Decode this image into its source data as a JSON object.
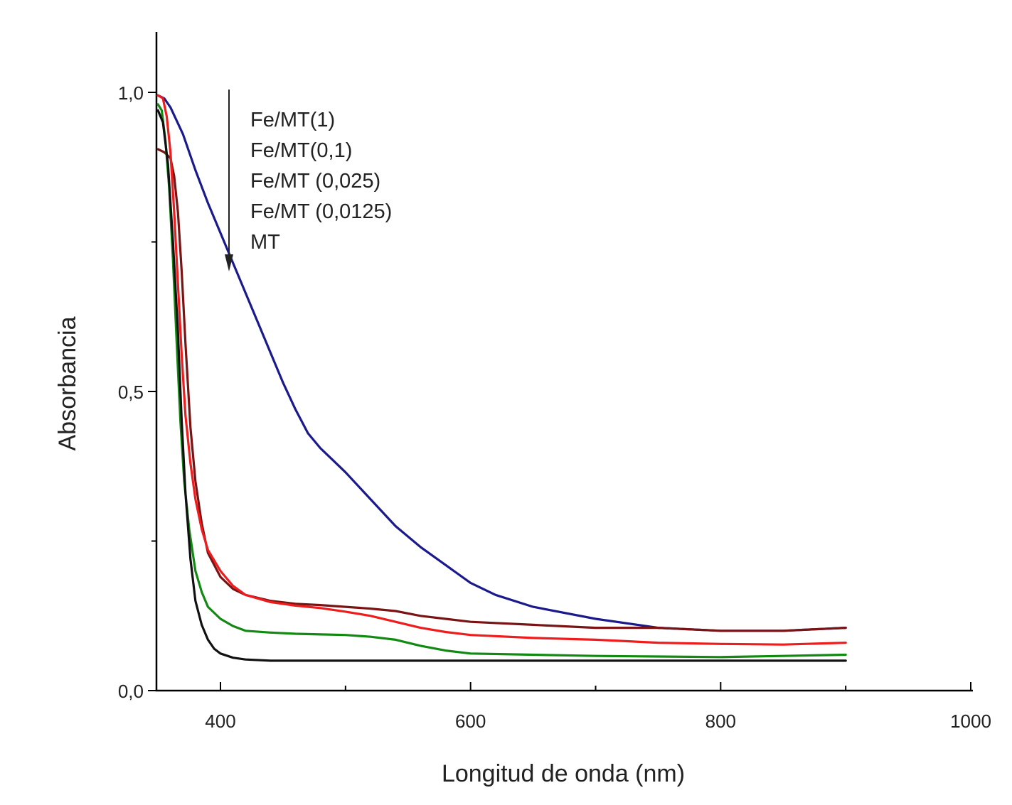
{
  "chart_data": {
    "type": "line",
    "xlabel": "Longitud de onda (nm)",
    "ylabel": "Absorbancia",
    "xlim": [
      350,
      1000
    ],
    "ylim": [
      0.0,
      1.1
    ],
    "x_ticks": [
      400,
      600,
      800,
      1000
    ],
    "x_tick_labels": [
      "400",
      "600",
      "800",
      "1000"
    ],
    "y_ticks": [
      0.0,
      0.5,
      1.0
    ],
    "y_tick_labels": [
      "0,0",
      "0,5",
      "1,0"
    ],
    "legend": {
      "placement": "top-left",
      "entries": [
        "Fe/MT(1)",
        "Fe/MT(0,1)",
        "Fe/MT (0,025)",
        "Fe/MT (0,0125)",
        "MT"
      ],
      "arrow": "down"
    },
    "grid": false,
    "series": [
      {
        "name": "Fe/MT(1)",
        "color": "#1a1a8c",
        "points": [
          [
            350,
            0.995
          ],
          [
            355,
            0.99
          ],
          [
            360,
            0.975
          ],
          [
            370,
            0.93
          ],
          [
            380,
            0.87
          ],
          [
            390,
            0.815
          ],
          [
            400,
            0.765
          ],
          [
            410,
            0.715
          ],
          [
            420,
            0.665
          ],
          [
            430,
            0.615
          ],
          [
            440,
            0.565
          ],
          [
            450,
            0.515
          ],
          [
            460,
            0.47
          ],
          [
            470,
            0.43
          ],
          [
            480,
            0.405
          ],
          [
            490,
            0.385
          ],
          [
            500,
            0.365
          ],
          [
            520,
            0.32
          ],
          [
            540,
            0.275
          ],
          [
            560,
            0.24
          ],
          [
            580,
            0.21
          ],
          [
            600,
            0.18
          ],
          [
            620,
            0.16
          ],
          [
            650,
            0.14
          ],
          [
            700,
            0.12
          ],
          [
            750,
            0.105
          ],
          [
            800,
            0.1
          ],
          [
            850,
            0.1
          ],
          [
            900,
            0.105
          ]
        ]
      },
      {
        "name": "Fe/MT(0,1)",
        "color": "#7a1414",
        "points": [
          [
            350,
            0.905
          ],
          [
            355,
            0.9
          ],
          [
            360,
            0.89
          ],
          [
            363,
            0.86
          ],
          [
            366,
            0.8
          ],
          [
            369,
            0.7
          ],
          [
            372,
            0.58
          ],
          [
            376,
            0.44
          ],
          [
            380,
            0.35
          ],
          [
            385,
            0.28
          ],
          [
            390,
            0.23
          ],
          [
            400,
            0.19
          ],
          [
            410,
            0.17
          ],
          [
            420,
            0.16
          ],
          [
            440,
            0.15
          ],
          [
            460,
            0.145
          ],
          [
            480,
            0.143
          ],
          [
            500,
            0.14
          ],
          [
            520,
            0.137
          ],
          [
            540,
            0.133
          ],
          [
            560,
            0.125
          ],
          [
            580,
            0.12
          ],
          [
            600,
            0.115
          ],
          [
            650,
            0.11
          ],
          [
            700,
            0.105
          ],
          [
            750,
            0.105
          ],
          [
            800,
            0.1
          ],
          [
            850,
            0.1
          ],
          [
            900,
            0.105
          ]
        ]
      },
      {
        "name": "Fe/MT (0,025)",
        "color": "#ee1c1c",
        "points": [
          [
            350,
            0.995
          ],
          [
            354,
            0.99
          ],
          [
            357,
            0.96
          ],
          [
            360,
            0.9
          ],
          [
            363,
            0.8
          ],
          [
            366,
            0.68
          ],
          [
            369,
            0.56
          ],
          [
            372,
            0.46
          ],
          [
            376,
            0.38
          ],
          [
            380,
            0.32
          ],
          [
            385,
            0.27
          ],
          [
            390,
            0.235
          ],
          [
            400,
            0.2
          ],
          [
            410,
            0.175
          ],
          [
            420,
            0.16
          ],
          [
            440,
            0.148
          ],
          [
            460,
            0.142
          ],
          [
            480,
            0.138
          ],
          [
            500,
            0.132
          ],
          [
            520,
            0.125
          ],
          [
            540,
            0.115
          ],
          [
            560,
            0.105
          ],
          [
            580,
            0.098
          ],
          [
            600,
            0.093
          ],
          [
            650,
            0.088
          ],
          [
            700,
            0.085
          ],
          [
            750,
            0.08
          ],
          [
            800,
            0.078
          ],
          [
            850,
            0.077
          ],
          [
            900,
            0.08
          ]
        ]
      },
      {
        "name": "Fe/MT (0,0125)",
        "color": "#128a12",
        "points": [
          [
            350,
            0.98
          ],
          [
            353,
            0.97
          ],
          [
            356,
            0.92
          ],
          [
            359,
            0.84
          ],
          [
            362,
            0.72
          ],
          [
            365,
            0.58
          ],
          [
            368,
            0.45
          ],
          [
            371,
            0.35
          ],
          [
            375,
            0.27
          ],
          [
            380,
            0.2
          ],
          [
            385,
            0.165
          ],
          [
            390,
            0.14
          ],
          [
            400,
            0.12
          ],
          [
            410,
            0.108
          ],
          [
            420,
            0.1
          ],
          [
            440,
            0.097
          ],
          [
            460,
            0.095
          ],
          [
            480,
            0.094
          ],
          [
            500,
            0.093
          ],
          [
            520,
            0.09
          ],
          [
            540,
            0.085
          ],
          [
            560,
            0.075
          ],
          [
            580,
            0.067
          ],
          [
            600,
            0.062
          ],
          [
            650,
            0.06
          ],
          [
            700,
            0.058
          ],
          [
            750,
            0.057
          ],
          [
            800,
            0.056
          ],
          [
            850,
            0.058
          ],
          [
            900,
            0.06
          ]
        ]
      },
      {
        "name": "MT",
        "color": "#111111",
        "points": [
          [
            350,
            0.97
          ],
          [
            354,
            0.95
          ],
          [
            358,
            0.88
          ],
          [
            362,
            0.75
          ],
          [
            366,
            0.6
          ],
          [
            369,
            0.45
          ],
          [
            372,
            0.33
          ],
          [
            376,
            0.22
          ],
          [
            380,
            0.15
          ],
          [
            385,
            0.11
          ],
          [
            390,
            0.085
          ],
          [
            395,
            0.07
          ],
          [
            400,
            0.062
          ],
          [
            410,
            0.055
          ],
          [
            420,
            0.052
          ],
          [
            440,
            0.05
          ],
          [
            460,
            0.05
          ],
          [
            500,
            0.05
          ],
          [
            600,
            0.05
          ],
          [
            700,
            0.05
          ],
          [
            800,
            0.05
          ],
          [
            850,
            0.05
          ],
          [
            900,
            0.05
          ]
        ]
      }
    ]
  }
}
